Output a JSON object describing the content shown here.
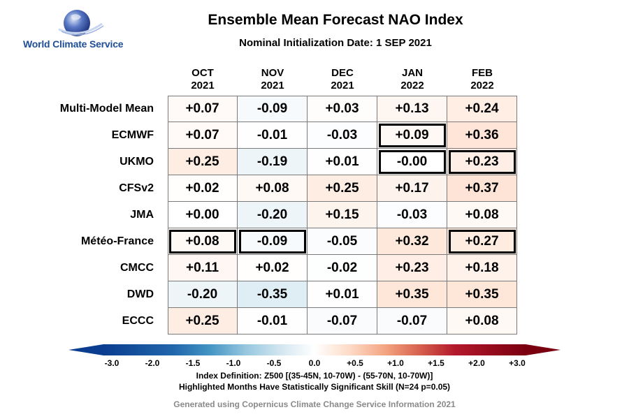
{
  "logo": {
    "text": "World Climate Service"
  },
  "chart_data": {
    "type": "heatmap",
    "title": "Ensemble Mean Forecast NAO Index",
    "subtitle": "Nominal Initialization Date: 1 SEP 2021",
    "columns": [
      {
        "month": "OCT",
        "year": "2021"
      },
      {
        "month": "NOV",
        "year": "2021"
      },
      {
        "month": "DEC",
        "year": "2021"
      },
      {
        "month": "JAN",
        "year": "2022"
      },
      {
        "month": "FEB",
        "year": "2022"
      }
    ],
    "rows": [
      {
        "model": "Multi-Model Mean",
        "values": [
          0.07,
          -0.09,
          0.03,
          0.13,
          0.24
        ],
        "labels": [
          "+0.07",
          "-0.09",
          "+0.03",
          "+0.13",
          "+0.24"
        ],
        "significant": [
          false,
          false,
          false,
          false,
          false
        ]
      },
      {
        "model": "ECMWF",
        "values": [
          0.07,
          -0.01,
          -0.03,
          0.09,
          0.36
        ],
        "labels": [
          "+0.07",
          "-0.01",
          "-0.03",
          "+0.09",
          "+0.36"
        ],
        "significant": [
          false,
          false,
          false,
          true,
          false
        ]
      },
      {
        "model": "UKMO",
        "values": [
          0.25,
          -0.19,
          0.01,
          -0.0,
          0.23
        ],
        "labels": [
          "+0.25",
          "-0.19",
          "+0.01",
          "-0.00",
          "+0.23"
        ],
        "significant": [
          false,
          false,
          false,
          true,
          true
        ]
      },
      {
        "model": "CFSv2",
        "values": [
          0.02,
          0.08,
          0.25,
          0.17,
          0.37
        ],
        "labels": [
          "+0.02",
          "+0.08",
          "+0.25",
          "+0.17",
          "+0.37"
        ],
        "significant": [
          false,
          false,
          false,
          false,
          false
        ]
      },
      {
        "model": "JMA",
        "values": [
          0.0,
          -0.2,
          0.15,
          -0.03,
          0.08
        ],
        "labels": [
          "+0.00",
          "-0.20",
          "+0.15",
          "-0.03",
          "+0.08"
        ],
        "significant": [
          false,
          false,
          false,
          false,
          false
        ]
      },
      {
        "model": "Météo-France",
        "values": [
          0.08,
          -0.09,
          -0.05,
          0.32,
          0.27
        ],
        "labels": [
          "+0.08",
          "-0.09",
          "-0.05",
          "+0.32",
          "+0.27"
        ],
        "significant": [
          true,
          true,
          false,
          false,
          true
        ]
      },
      {
        "model": "CMCC",
        "values": [
          0.11,
          0.02,
          -0.02,
          0.23,
          0.18
        ],
        "labels": [
          "+0.11",
          "+0.02",
          "-0.02",
          "+0.23",
          "+0.18"
        ],
        "significant": [
          false,
          false,
          false,
          false,
          false
        ]
      },
      {
        "model": "DWD",
        "values": [
          -0.2,
          -0.35,
          0.01,
          0.35,
          0.35
        ],
        "labels": [
          "-0.20",
          "-0.35",
          "+0.01",
          "+0.35",
          "+0.35"
        ],
        "significant": [
          false,
          false,
          false,
          false,
          false
        ]
      },
      {
        "model": "ECCC",
        "values": [
          0.25,
          -0.01,
          -0.07,
          -0.07,
          0.08
        ],
        "labels": [
          "+0.25",
          "-0.01",
          "-0.07",
          "-0.07",
          "+0.08"
        ],
        "significant": [
          false,
          false,
          false,
          false,
          false
        ]
      }
    ],
    "colorbar": {
      "range": [
        -3.0,
        3.0
      ],
      "ticks": [
        -3.0,
        -2.0,
        -1.5,
        -1.0,
        -0.5,
        0.0,
        0.5,
        1.0,
        1.5,
        2.0,
        3.0
      ],
      "tick_labels": [
        "-3.0",
        "-2.0",
        "-1.5",
        "-1.0",
        "-0.5",
        "0.0",
        "+0.5",
        "+1.0",
        "+1.5",
        "+2.0",
        "+3.0"
      ],
      "colors": [
        "#0a3d8f",
        "#2166ac",
        "#4393c3",
        "#92c5de",
        "#d1e5f0",
        "#ffffff",
        "#fddbc7",
        "#f4a582",
        "#d6604d",
        "#b2182b",
        "#7a0010"
      ]
    },
    "notes": [
      "Index Definition: Z500 [(35-45N, 10-70W) - (55-70N, 10-70W)]",
      "Highlighted Months Have Statistically Significant Skill (N=24 p=0.05)"
    ],
    "footer": "Generated using Copernicus Climate Change Service Information 2021"
  }
}
